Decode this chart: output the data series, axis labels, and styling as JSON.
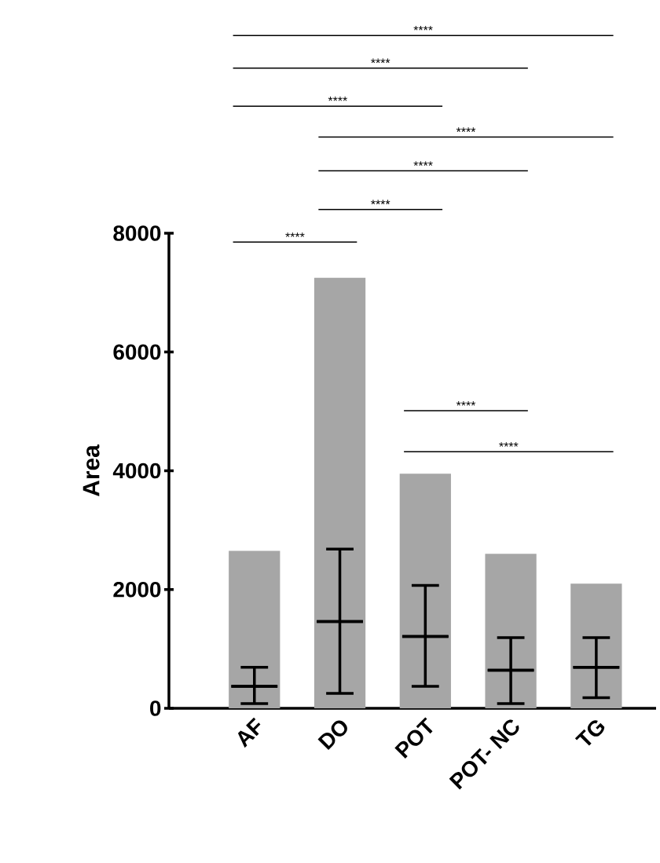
{
  "chart_data": {
    "type": "box",
    "ylabel": "Area",
    "categories": [
      "AF",
      "DO",
      "POT",
      "POT- NC",
      "TG"
    ],
    "ylim": [
      0,
      8000
    ],
    "yticks": [
      0,
      2000,
      4000,
      6000,
      8000
    ],
    "series": [
      {
        "type": "bar",
        "color": "#a6a6a6",
        "values": [
          2650,
          7250,
          3950,
          2600,
          2100
        ]
      },
      {
        "color": "#000000",
        "boxes": [
          {
            "low": 80,
            "q1": 370,
            "median": 370,
            "q3": 370,
            "high": 690
          },
          {
            "low": 250,
            "q1": 1460,
            "median": 1460,
            "q3": 1460,
            "high": 2680
          },
          {
            "low": 370,
            "q1": 1210,
            "median": 1210,
            "q3": 1210,
            "high": 2070
          },
          {
            "low": 80,
            "q1": 640,
            "median": 640,
            "q3": 640,
            "high": 1190
          },
          {
            "low": 180,
            "q1": 690,
            "median": 690,
            "q3": 690,
            "high": 1190
          }
        ]
      }
    ],
    "annotations": [
      "****",
      "****",
      "****",
      "****",
      "****",
      "****",
      "****",
      "****",
      "****"
    ]
  }
}
